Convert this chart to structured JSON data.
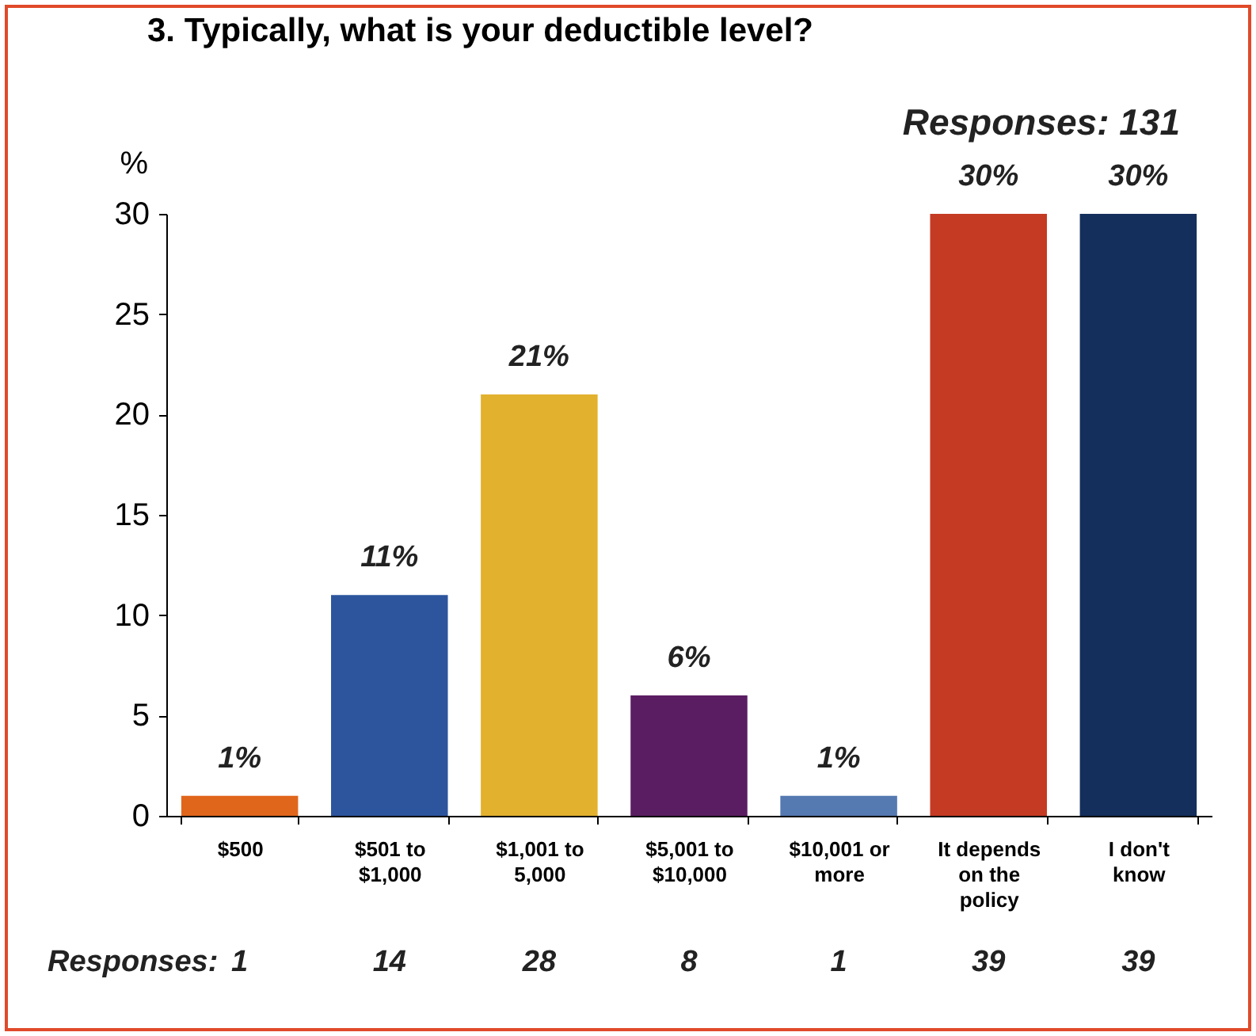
{
  "chart_data": {
    "type": "bar",
    "title": "3. Typically, what is your deductible level?",
    "ylabel": "%",
    "categories": [
      "$500",
      "$501 to $1,000",
      "$1,001 to 5,000",
      "$5,001 to $10,000",
      "$10,001 or more",
      "It depends on the policy",
      "I don't know"
    ],
    "values": [
      1,
      11,
      21,
      6,
      1,
      30,
      30
    ],
    "colors": [
      "#e0661c",
      "#2d559e",
      "#e2b12e",
      "#5b1d62",
      "#5579b1",
      "#c53a22",
      "#142f5c"
    ],
    "value_labels": [
      "1%",
      "11%",
      "21%",
      "6%",
      "1%",
      "30%",
      "30%"
    ],
    "ylim": [
      0,
      30
    ],
    "yticks": [
      0,
      5,
      10,
      15,
      20,
      25,
      30
    ],
    "grid": false,
    "legend": false,
    "annotations": [
      "Responses:  131",
      "Responses:",
      "1",
      "14",
      "28",
      "8",
      "1",
      "39",
      "39"
    ]
  }
}
